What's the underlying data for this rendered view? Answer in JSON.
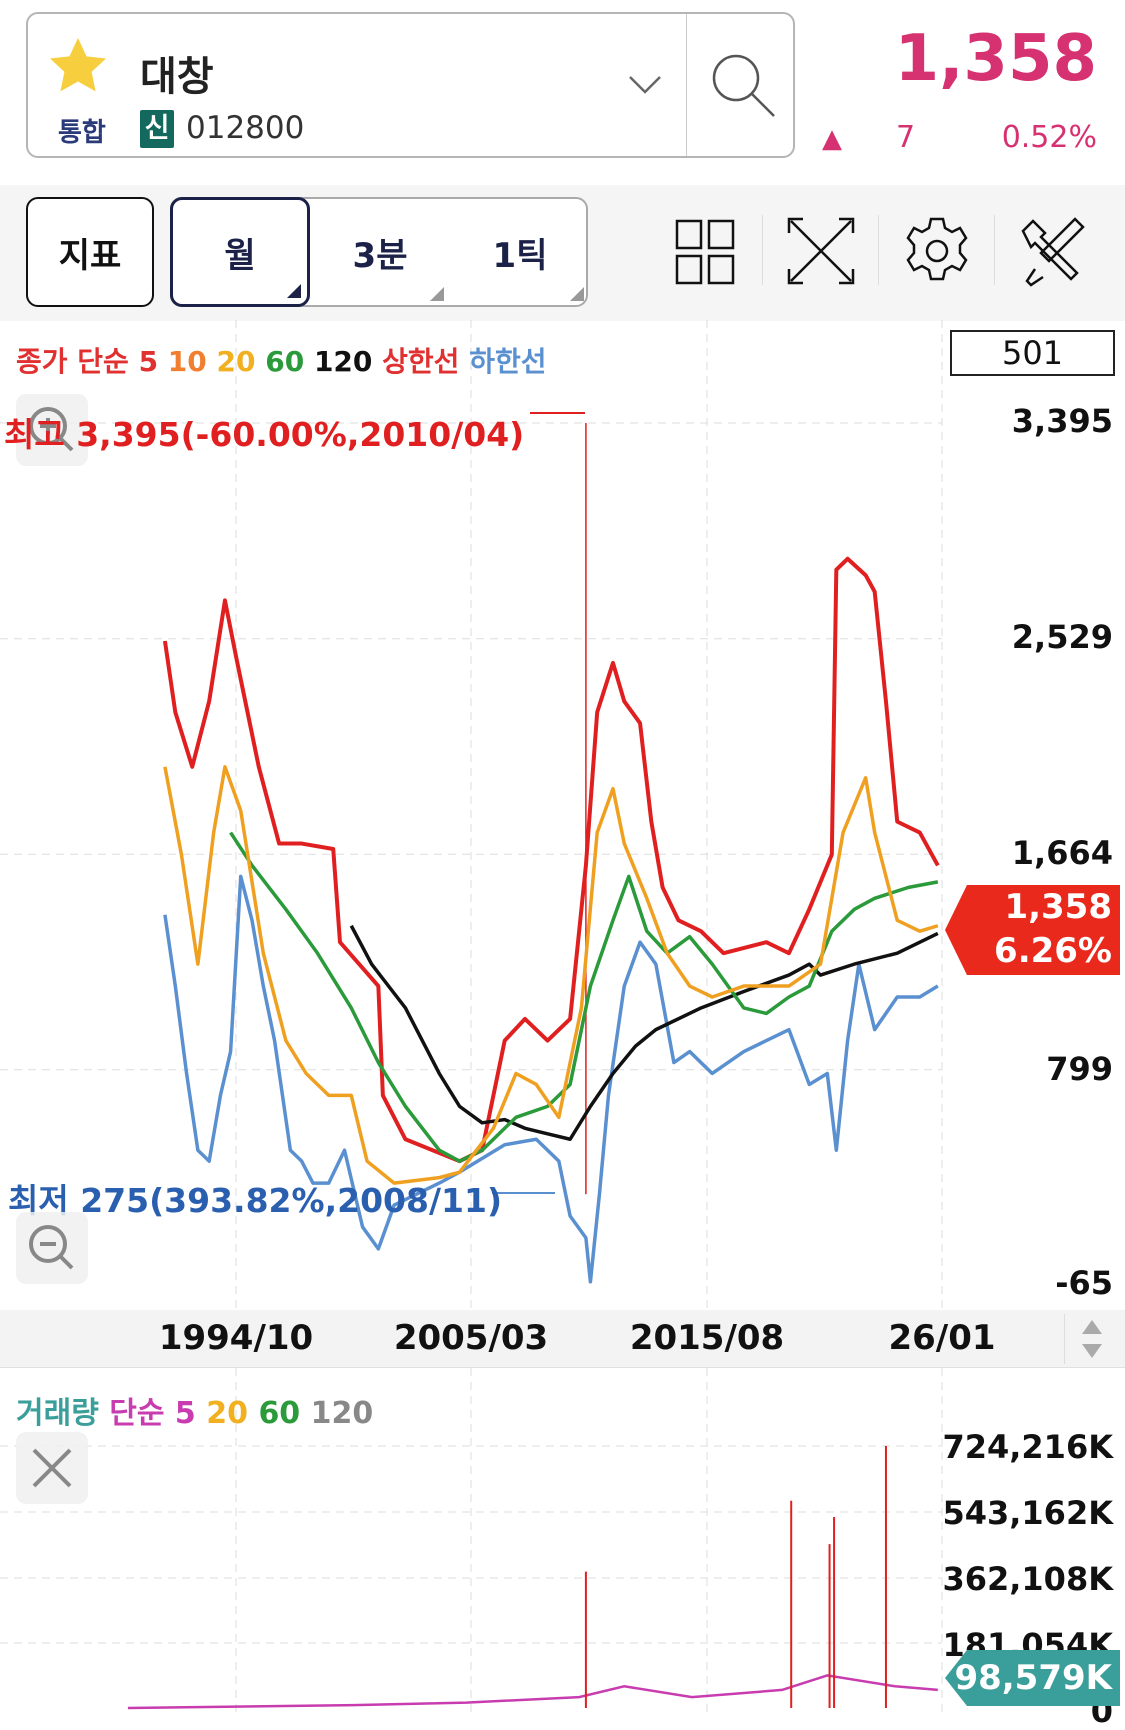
{
  "header": {
    "stock_name": "대창",
    "market": "통합",
    "credit_badge": "신",
    "code": "012800",
    "price": "1,358",
    "change_arrow": "▲",
    "change": "7",
    "change_pct": "0.52%",
    "price_color": "#d63271"
  },
  "toolbar": {
    "indicator": "지표",
    "periods": [
      "월",
      "3분",
      "1틱"
    ],
    "icons": [
      "layout-grid-icon",
      "fullscreen-icon",
      "gear-icon",
      "tools-icon"
    ]
  },
  "price_chart": {
    "legend": [
      {
        "t": "종가",
        "c": "#e03030"
      },
      {
        "t": "단순",
        "c": "#e03030"
      },
      {
        "t": "5",
        "c": "#e03030"
      },
      {
        "t": "10",
        "c": "#f08030"
      },
      {
        "t": "20",
        "c": "#f0b020"
      },
      {
        "t": "60",
        "c": "#2a9a3a"
      },
      {
        "t": "120",
        "c": "#111111"
      },
      {
        "t": "상한선",
        "c": "#e03030"
      },
      {
        "t": "하한선",
        "c": "#5a90d0"
      }
    ],
    "count": "501",
    "y_labels": [
      "3,395",
      "2,529",
      "1,664",
      "799",
      "-65"
    ],
    "high_annotation": "최고 3,395(-60.00%,2010/04)",
    "low_annotation": "최저 275(393.82%,2008/11)",
    "current_price": "1,358",
    "current_pct": "6.26%",
    "current_color": "#e8291c",
    "x_labels": [
      "1994/10",
      "2005/03",
      "2015/08",
      "26/01"
    ]
  },
  "volume_chart": {
    "legend": [
      {
        "t": "거래량",
        "c": "#3a9e9a"
      },
      {
        "t": "단순",
        "c": "#c83cb0"
      },
      {
        "t": "5",
        "c": "#c83cb0"
      },
      {
        "t": "20",
        "c": "#f0b020"
      },
      {
        "t": "60",
        "c": "#2a9a3a"
      },
      {
        "t": "120",
        "c": "#888888"
      }
    ],
    "y_labels": [
      "724,216K",
      "543,162K",
      "362,108K",
      "181,054K",
      "0"
    ],
    "current": "98,579K",
    "current_color": "#3a9e9a"
  },
  "chart_data": {
    "type": "line",
    "x_unit": "year",
    "y_range": [
      -65,
      3395
    ],
    "high_point": {
      "date": "2010/04",
      "value": 3395
    },
    "low_point": {
      "date": "2008/11",
      "value": 275
    },
    "series": [
      {
        "name": "상한선",
        "color": "#e02020",
        "points": [
          [
            1991.64,
            2520
          ],
          [
            1992.1,
            2234
          ],
          [
            1992.85,
            2015
          ],
          [
            1993.6,
            2278
          ],
          [
            1994.3,
            2683
          ],
          [
            1994.8,
            2454
          ],
          [
            1995.8,
            2015
          ],
          [
            1996.7,
            1707
          ],
          [
            1997.7,
            1707
          ],
          [
            1999.1,
            1685
          ],
          [
            1999.4,
            1311
          ],
          [
            2001.1,
            1135
          ],
          [
            2001.3,
            696
          ],
          [
            2002.3,
            520
          ],
          [
            2004.7,
            432
          ],
          [
            2005.7,
            476
          ],
          [
            2006.7,
            916
          ],
          [
            2007.6,
            1003
          ],
          [
            2008.6,
            916
          ],
          [
            2009.6,
            1003
          ],
          [
            2010.3,
            1619
          ],
          [
            2010.8,
            2234
          ],
          [
            2011.5,
            2432
          ],
          [
            2012.0,
            2278
          ],
          [
            2012.7,
            2190
          ],
          [
            2013.2,
            1795
          ],
          [
            2013.7,
            1531
          ],
          [
            2014.4,
            1399
          ],
          [
            2015.4,
            1355
          ],
          [
            2016.4,
            1267
          ],
          [
            2018.3,
            1311
          ],
          [
            2019.3,
            1267
          ],
          [
            2020.2,
            1443
          ],
          [
            2021.2,
            1663
          ],
          [
            2021.4,
            2806
          ],
          [
            2021.9,
            2850
          ],
          [
            2022.7,
            2784
          ],
          [
            2023.1,
            2718
          ],
          [
            2023.6,
            2278
          ],
          [
            2024.1,
            1795
          ],
          [
            2025.1,
            1751
          ],
          [
            2025.9,
            1619
          ]
        ]
      },
      {
        "name": "하한선",
        "color": "#5a90d0",
        "points": [
          [
            1991.64,
            1421
          ],
          [
            1992.1,
            1135
          ],
          [
            1992.6,
            784
          ],
          [
            1993.1,
            476
          ],
          [
            1993.6,
            432
          ],
          [
            1994.1,
            696
          ],
          [
            1994.55,
            872
          ],
          [
            1995.0,
            1575
          ],
          [
            1995.5,
            1399
          ],
          [
            1996.0,
            1135
          ],
          [
            1996.5,
            916
          ],
          [
            1997.2,
            476
          ],
          [
            1997.7,
            432
          ],
          [
            1998.2,
            344
          ],
          [
            1998.9,
            344
          ],
          [
            1999.6,
            476
          ],
          [
            2000.4,
            168
          ],
          [
            2001.1,
            80
          ],
          [
            2001.8,
            256
          ],
          [
            2003.8,
            344
          ],
          [
            2004.7,
            388
          ],
          [
            2006.7,
            498
          ],
          [
            2008.1,
            520
          ],
          [
            2009.1,
            432
          ],
          [
            2009.6,
            212
          ],
          [
            2010.3,
            124
          ],
          [
            2010.5,
            -52
          ],
          [
            2010.9,
            300
          ],
          [
            2011.3,
            696
          ],
          [
            2012.0,
            1135
          ],
          [
            2012.7,
            1311
          ],
          [
            2013.4,
            1223
          ],
          [
            2014.2,
            828
          ],
          [
            2014.9,
            872
          ],
          [
            2015.9,
            784
          ],
          [
            2017.3,
            872
          ],
          [
            2018.3,
            916
          ],
          [
            2019.3,
            960
          ],
          [
            2020.2,
            740
          ],
          [
            2021.0,
            784
          ],
          [
            2021.4,
            476
          ],
          [
            2021.9,
            916
          ],
          [
            2022.4,
            1223
          ],
          [
            2023.1,
            960
          ],
          [
            2024.1,
            1091
          ],
          [
            2025.1,
            1091
          ],
          [
            2025.9,
            1135
          ]
        ]
      },
      {
        "name": "120",
        "color": "#111111",
        "points": [
          [
            1999.9,
            1377
          ],
          [
            2000.8,
            1223
          ],
          [
            2002.3,
            1047
          ],
          [
            2003.8,
            784
          ],
          [
            2004.7,
            652
          ],
          [
            2005.7,
            586
          ],
          [
            2006.7,
            599
          ],
          [
            2007.6,
            564
          ],
          [
            2008.6,
            542
          ],
          [
            2009.6,
            520
          ],
          [
            2010.5,
            652
          ],
          [
            2011.5,
            784
          ],
          [
            2012.5,
            894
          ],
          [
            2013.4,
            960
          ],
          [
            2015.4,
            1047
          ],
          [
            2017.3,
            1113
          ],
          [
            2019.3,
            1179
          ],
          [
            2020.2,
            1223
          ],
          [
            2020.7,
            1179
          ],
          [
            2022.2,
            1223
          ],
          [
            2024.1,
            1267
          ],
          [
            2025.9,
            1346
          ]
        ]
      },
      {
        "name": "60",
        "color": "#2a9a3a",
        "points": [
          [
            1994.55,
            1751
          ],
          [
            1995.5,
            1619
          ],
          [
            1997.0,
            1443
          ],
          [
            1998.4,
            1267
          ],
          [
            1999.9,
            1047
          ],
          [
            2001.1,
            828
          ],
          [
            2002.3,
            652
          ],
          [
            2003.8,
            476
          ],
          [
            2004.7,
            432
          ],
          [
            2005.7,
            476
          ],
          [
            2007.2,
            608
          ],
          [
            2008.6,
            652
          ],
          [
            2009.6,
            740
          ],
          [
            2010.5,
            1135
          ],
          [
            2011.5,
            1399
          ],
          [
            2012.2,
            1575
          ],
          [
            2013.0,
            1355
          ],
          [
            2013.9,
            1267
          ],
          [
            2014.9,
            1333
          ],
          [
            2015.9,
            1223
          ],
          [
            2017.3,
            1047
          ],
          [
            2018.3,
            1025
          ],
          [
            2019.3,
            1091
          ],
          [
            2020.2,
            1135
          ],
          [
            2021.2,
            1355
          ],
          [
            2022.2,
            1443
          ],
          [
            2023.1,
            1487
          ],
          [
            2024.6,
            1531
          ],
          [
            2025.9,
            1553
          ]
        ]
      },
      {
        "name": "20",
        "color": "#f0a020",
        "points": [
          [
            1991.64,
            2015
          ],
          [
            1992.37,
            1663
          ],
          [
            1993.1,
            1223
          ],
          [
            1993.8,
            1751
          ],
          [
            1994.3,
            2015
          ],
          [
            1995.0,
            1839
          ],
          [
            1996.0,
            1267
          ],
          [
            1997.0,
            916
          ],
          [
            1997.9,
            784
          ],
          [
            1998.9,
            696
          ],
          [
            1999.9,
            696
          ],
          [
            2000.6,
            432
          ],
          [
            2001.8,
            344
          ],
          [
            2003.8,
            366
          ],
          [
            2004.7,
            388
          ],
          [
            2006.2,
            564
          ],
          [
            2007.2,
            784
          ],
          [
            2008.1,
            740
          ],
          [
            2009.1,
            608
          ],
          [
            2010.1,
            1047
          ],
          [
            2010.8,
            1751
          ],
          [
            2011.5,
            1927
          ],
          [
            2012.0,
            1707
          ],
          [
            2013.0,
            1487
          ],
          [
            2013.9,
            1267
          ],
          [
            2014.9,
            1135
          ],
          [
            2015.9,
            1091
          ],
          [
            2017.3,
            1135
          ],
          [
            2019.3,
            1135
          ],
          [
            2020.7,
            1223
          ],
          [
            2021.7,
            1751
          ],
          [
            2022.7,
            1971
          ],
          [
            2023.1,
            1751
          ],
          [
            2024.1,
            1399
          ],
          [
            2025.1,
            1355
          ],
          [
            2025.9,
            1377
          ]
        ]
      }
    ],
    "volume_range": [
      0,
      724216
    ],
    "volume_spikes": [
      [
        2010.3,
        377000
      ],
      [
        2019.4,
        573000
      ],
      [
        2021.3,
        528000
      ],
      [
        2021.1,
        453000
      ],
      [
        2023.6,
        724216
      ]
    ]
  }
}
